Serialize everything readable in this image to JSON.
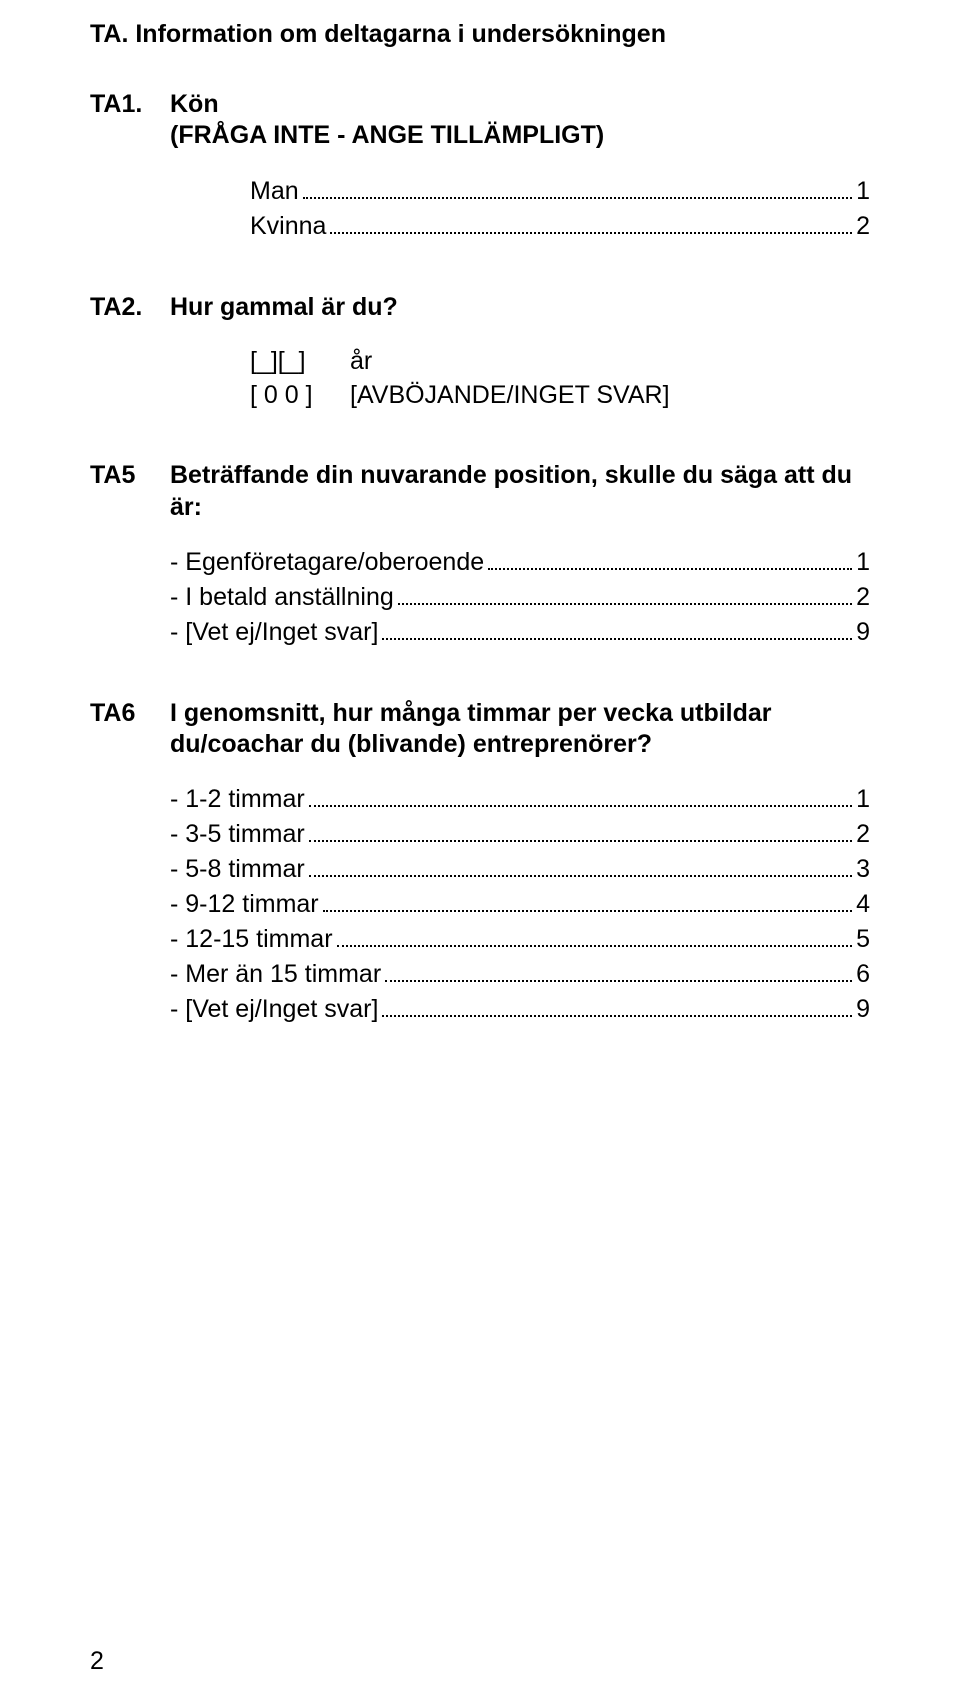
{
  "section_title": "TA. Information om deltagarna i undersökningen",
  "q1": {
    "code": "TA1.",
    "text": "Kön",
    "subtext": "(FRÅGA INTE - ANGE TILLÄMPLIGT)",
    "options": [
      {
        "label": "Man",
        "num": "1"
      },
      {
        "label": "Kvinna",
        "num": "2"
      }
    ]
  },
  "q2": {
    "code": "TA2.",
    "text": "Hur gammal är du?",
    "lines": [
      {
        "left": "[_][_]",
        "right": "år"
      },
      {
        "left": "[ 0 0 ]",
        "right": "[AVBÖJANDE/INGET SVAR]"
      }
    ]
  },
  "q5": {
    "code": "TA5",
    "text": "Beträffande din nuvarande position, skulle du säga att du är:",
    "options": [
      {
        "label": "- Egenföretagare/oberoende",
        "num": "1"
      },
      {
        "label": "- I betald anställning",
        "num": "2"
      },
      {
        "label": "- [Vet ej/Inget svar]",
        "num": "9"
      }
    ]
  },
  "q6": {
    "code": "TA6",
    "text": "I genomsnitt, hur många timmar per vecka utbildar du/coachar du (blivande) entreprenörer?",
    "options": [
      {
        "label": "- 1-2 timmar",
        "num": "1"
      },
      {
        "label": "- 3-5 timmar",
        "num": "2"
      },
      {
        "label": "- 5-8 timmar",
        "num": "3"
      },
      {
        "label": "- 9-12 timmar",
        "num": "4"
      },
      {
        "label": "- 12-15 timmar",
        "num": "5"
      },
      {
        "label": "- Mer än 15 timmar",
        "num": "6"
      },
      {
        "label": "- [Vet ej/Inget svar]",
        "num": "9"
      }
    ]
  },
  "page_number": "2"
}
